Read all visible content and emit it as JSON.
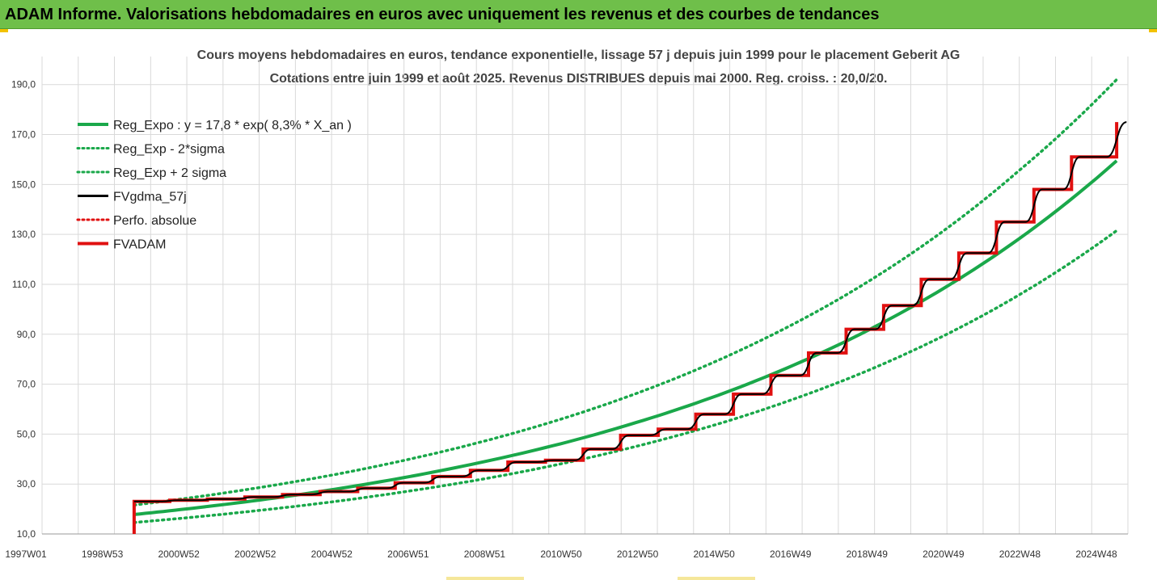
{
  "banner": {
    "title": "ADAM Informe. Valorisations hebdomadaires en euros avec uniquement les revenus et des courbes de tendances"
  },
  "colors": {
    "banner_bg": "#6fbf4a",
    "reg_green": "#1aa84a",
    "fv_black": "#000000",
    "adam_red": "#e01010",
    "grid": "#d9d9d9"
  },
  "chart_data": {
    "type": "line",
    "title": "Cours moyens hebdomadaires en euros, tendance exponentielle, lissage 57 j depuis juin 1999 pour le placement Geberit AG",
    "subtitle": "Cotations entre juin 1999 et août 2025. Revenus DISTRIBUES depuis mai 2000. Reg. croiss. : 20,0/20.",
    "xlabel": "",
    "ylabel": "",
    "x_tick_labels": [
      "1997W01",
      "1998W53",
      "2000W52",
      "2002W52",
      "2004W52",
      "2006W51",
      "2008W51",
      "2010W50",
      "2012W50",
      "2014W50",
      "2016W49",
      "2018W49",
      "2020W49",
      "2022W48",
      "2024W48"
    ],
    "y_tick_labels": [
      "10,0",
      "30,0",
      "50,0",
      "70,0",
      "90,0",
      "110,0",
      "130,0",
      "150,0",
      "170,0",
      "190,0"
    ],
    "ylim": [
      10,
      198
    ],
    "legend_position": "top-left",
    "grid": true,
    "legend": [
      {
        "label": "Reg_Expo : y = 17,8 * exp( 8,3% *  X_an )",
        "style": "solid-thick",
        "color": "#1aa84a"
      },
      {
        "label": "Reg_Exp - 2*sigma",
        "style": "dotted",
        "color": "#1aa84a"
      },
      {
        "label": "Reg_Exp + 2 sigma",
        "style": "dotted",
        "color": "#1aa84a"
      },
      {
        "label": "FVgdma_57j",
        "style": "solid",
        "color": "#000000"
      },
      {
        "label": "Perfo. absolue",
        "style": "dotted",
        "color": "#e01010"
      },
      {
        "label": "FVADAM",
        "style": "solid-thick",
        "color": "#e01010"
      }
    ],
    "series": [
      {
        "name": "Reg_Expo : y = 17,8 * exp( 8,3% *  X_an )",
        "x": [
          1999.45,
          2001,
          2003,
          2005,
          2007,
          2009,
          2011,
          2013,
          2015,
          2017,
          2019,
          2021,
          2023,
          2025.6
        ],
        "values": [
          17.8,
          20.3,
          24.0,
          28.4,
          33.6,
          39.7,
          46.9,
          55.5,
          65.6,
          77.6,
          91.7,
          108.4,
          128.2,
          159.5
        ]
      },
      {
        "name": "Reg_Exp - 2*sigma",
        "x": [
          1999.45,
          2001,
          2003,
          2005,
          2007,
          2009,
          2011,
          2013,
          2015,
          2017,
          2019,
          2021,
          2023,
          2025.6
        ],
        "values": [
          14.6,
          16.7,
          19.8,
          23.4,
          27.7,
          32.7,
          38.7,
          45.8,
          54.1,
          64.0,
          75.6,
          89.4,
          105.7,
          131.5
        ]
      },
      {
        "name": "Reg_Exp + 2 sigma",
        "x": [
          1999.45,
          2001,
          2003,
          2005,
          2007,
          2009,
          2011,
          2013,
          2015,
          2017,
          2019,
          2021,
          2023,
          2025.6
        ],
        "values": [
          21.6,
          24.6,
          29.1,
          34.4,
          40.7,
          48.1,
          56.9,
          67.3,
          79.6,
          94.1,
          111.2,
          131.5,
          155.5,
          192.0
        ]
      },
      {
        "name": "FVADAM",
        "steps_x": [
          1999.45,
          2000.4,
          2001.4,
          2002.4,
          2003.4,
          2004.4,
          2005.4,
          2006.4,
          2007.4,
          2008.4,
          2009.4,
          2010.4,
          2011.4,
          2012.4,
          2013.4,
          2014.4,
          2015.4,
          2016.4,
          2017.4,
          2018.4,
          2019.4,
          2020.4,
          2021.4,
          2022.4,
          2023.4,
          2024.4,
          2025.6
        ],
        "steps_y": [
          23.0,
          23.5,
          24.0,
          24.8,
          25.8,
          27.0,
          28.3,
          30.5,
          33.0,
          35.5,
          38.8,
          39.5,
          44.0,
          49.5,
          52.0,
          58.0,
          66.0,
          73.5,
          82.5,
          92.0,
          101.5,
          112.0,
          122.5,
          135.0,
          148.0,
          161.0,
          175.0
        ],
        "start_y": 10.0
      },
      {
        "name": "FVgdma_57j",
        "note_style": "smoothed version of FVADAM steps"
      }
    ]
  }
}
